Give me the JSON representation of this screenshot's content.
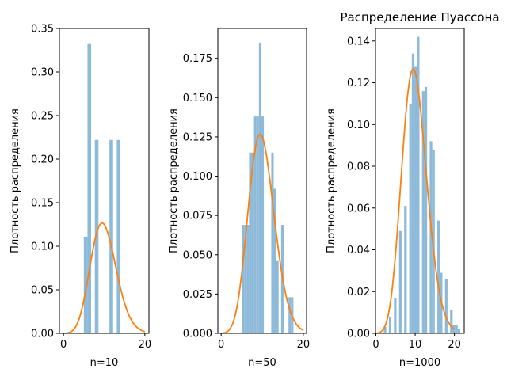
{
  "colors": {
    "hist": "#8ebad9",
    "curve": "#ff7f0e"
  },
  "chart_data": [
    {
      "type": "bar",
      "title": "",
      "xlabel": "n=10",
      "ylabel": "Плотность распределения",
      "xlim": [
        -1.0,
        21.0
      ],
      "ylim": [
        0,
        0.35
      ],
      "xticks": [
        0,
        20
      ],
      "xtick_labels": [
        "0",
        "20"
      ],
      "yticks": [
        0,
        0.05,
        0.1,
        0.15,
        0.2,
        0.25,
        0.3,
        0.35
      ],
      "ytick_labels": [
        "0.00",
        "0.05",
        "0.10",
        "0.15",
        "0.20",
        "0.25",
        "0.30",
        "0.35"
      ],
      "hist": {
        "bins": [
          [
            5.0,
            5.9
          ],
          [
            5.9,
            6.8
          ],
          [
            7.7,
            8.6
          ],
          [
            11.3,
            12.2
          ],
          [
            13.1,
            14.0
          ]
        ],
        "values": [
          0.111,
          0.333,
          0.222,
          0.222,
          0.222
        ]
      },
      "pmf": {
        "x": [
          0,
          1,
          2,
          3,
          4,
          5,
          6,
          7,
          8,
          9,
          10,
          11,
          12,
          13,
          14,
          15,
          16,
          17,
          18,
          19,
          20
        ],
        "y": [
          5e-05,
          0.00045,
          0.00227,
          0.00757,
          0.01892,
          0.03783,
          0.06306,
          0.09008,
          0.1126,
          0.12511,
          0.12511,
          0.11374,
          0.09478,
          0.07291,
          0.05208,
          0.03472,
          0.0217,
          0.01276,
          0.00709,
          0.00373,
          0.00187
        ]
      }
    },
    {
      "type": "bar",
      "title": "",
      "xlabel": "n=50",
      "ylabel": "Плотность распределения",
      "xlim": [
        -0.8,
        20.8
      ],
      "ylim": [
        0,
        0.194
      ],
      "xticks": [
        0,
        20
      ],
      "xtick_labels": [
        "0",
        "20"
      ],
      "yticks": [
        0,
        0.025,
        0.05,
        0.075,
        0.1,
        0.125,
        0.15,
        0.175
      ],
      "ytick_labels": [
        "0.000",
        "0.025",
        "0.050",
        "0.075",
        "0.100",
        "0.125",
        "0.150",
        "0.175"
      ],
      "hist": {
        "bins": [
          [
            5.0,
            5.6
          ],
          [
            5.6,
            6.2
          ],
          [
            6.2,
            6.8
          ],
          [
            6.8,
            7.4
          ],
          [
            7.4,
            8.0
          ],
          [
            8.0,
            8.6
          ],
          [
            8.6,
            9.2
          ],
          [
            9.2,
            9.8
          ],
          [
            9.8,
            10.4
          ],
          [
            10.4,
            11.0
          ],
          [
            11.0,
            11.6
          ],
          [
            11.6,
            12.2
          ],
          [
            12.2,
            12.8
          ],
          [
            12.8,
            13.4
          ],
          [
            13.4,
            14.0
          ],
          [
            14.0,
            14.6
          ],
          [
            14.6,
            15.2
          ],
          [
            15.2,
            15.8
          ],
          [
            15.8,
            16.4
          ],
          [
            16.4,
            17.0
          ],
          [
            17.0,
            17.6
          ],
          [
            17.6,
            18.2
          ],
          [
            18.2,
            18.8
          ],
          [
            18.8,
            19.4
          ],
          [
            19.4,
            20.0
          ]
        ],
        "values": [
          0.069,
          0.069,
          0.069,
          0.115,
          0.115,
          0.138,
          0.138,
          0.185,
          0.138,
          0.0,
          0.0,
          0.0,
          0.115,
          0.092,
          0.046,
          0.0,
          0.069,
          0.0,
          0.0,
          0.023,
          0.023,
          0.0,
          0.0,
          0.0,
          0.0
        ]
      },
      "pmf": {
        "x": [
          0,
          1,
          2,
          3,
          4,
          5,
          6,
          7,
          8,
          9,
          10,
          11,
          12,
          13,
          14,
          15,
          16,
          17,
          18,
          19,
          20
        ],
        "y": [
          5e-05,
          0.00045,
          0.00227,
          0.00757,
          0.01892,
          0.03783,
          0.06306,
          0.09008,
          0.1126,
          0.12511,
          0.12511,
          0.11374,
          0.09478,
          0.07291,
          0.05208,
          0.03472,
          0.0217,
          0.01276,
          0.00709,
          0.00373,
          0.00187
        ]
      }
    },
    {
      "type": "bar",
      "title": "Распределение Пуассона",
      "xlabel": "n=1000",
      "ylabel": "Плотность распределения",
      "xlim": [
        -0.1,
        22.5
      ],
      "ylim": [
        0,
        0.146
      ],
      "xticks": [
        0,
        10,
        20
      ],
      "xtick_labels": [
        "0",
        "10",
        "20"
      ],
      "yticks": [
        0,
        0.02,
        0.04,
        0.06,
        0.08,
        0.1,
        0.12,
        0.14
      ],
      "ytick_labels": [
        "0.00",
        "0.02",
        "0.04",
        "0.06",
        "0.08",
        "0.10",
        "0.12",
        "0.14"
      ],
      "hist": {
        "bins": [
          [
            2.0,
            2.65
          ],
          [
            2.65,
            3.3
          ],
          [
            3.3,
            3.95
          ],
          [
            3.95,
            4.6
          ],
          [
            4.6,
            5.25
          ],
          [
            5.25,
            5.9
          ],
          [
            5.9,
            6.55
          ],
          [
            6.55,
            7.2
          ],
          [
            7.2,
            7.85
          ],
          [
            7.85,
            8.5
          ],
          [
            8.5,
            9.15
          ],
          [
            9.15,
            9.8
          ],
          [
            9.8,
            10.45
          ],
          [
            10.45,
            11.1
          ],
          [
            11.1,
            11.75
          ],
          [
            11.75,
            12.4
          ],
          [
            12.4,
            13.05
          ],
          [
            13.05,
            13.7
          ],
          [
            13.7,
            14.35
          ],
          [
            14.35,
            15.0
          ],
          [
            15.0,
            15.65
          ],
          [
            15.65,
            16.3
          ],
          [
            16.3,
            16.95
          ],
          [
            16.95,
            17.6
          ],
          [
            17.6,
            18.25
          ],
          [
            18.25,
            18.9
          ],
          [
            18.9,
            19.55
          ],
          [
            19.55,
            20.2
          ],
          [
            20.2,
            20.85
          ],
          [
            20.85,
            21.5
          ]
        ],
        "values": [
          0.003,
          0.0,
          0.008,
          0.0,
          0.017,
          0.0,
          0.049,
          0.0,
          0.061,
          0.0,
          0.11,
          0.134,
          0.128,
          0.142,
          0.0,
          0.116,
          0.118,
          0.0,
          0.092,
          0.088,
          0.0,
          0.054,
          0.029,
          0.0,
          0.026,
          0.0,
          0.011,
          0.004,
          0.004,
          0.002
        ]
      },
      "pmf": {
        "x": [
          0,
          1,
          2,
          3,
          4,
          5,
          6,
          7,
          8,
          9,
          10,
          11,
          12,
          13,
          14,
          15,
          16,
          17,
          18,
          19,
          20
        ],
        "y": [
          5e-05,
          0.00045,
          0.00227,
          0.00757,
          0.01892,
          0.03783,
          0.06306,
          0.09008,
          0.1126,
          0.12511,
          0.12511,
          0.11374,
          0.09478,
          0.07291,
          0.05208,
          0.03472,
          0.0217,
          0.01276,
          0.00709,
          0.00373,
          0.00187
        ]
      }
    }
  ]
}
